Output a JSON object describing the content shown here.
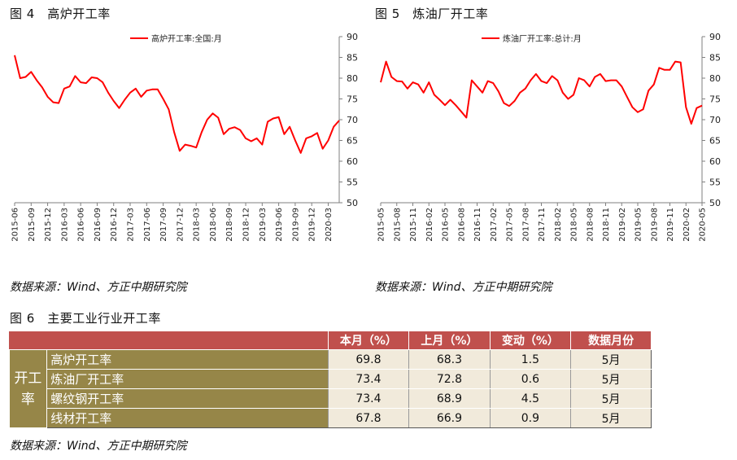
{
  "fig4": {
    "title": "图 4　高炉开工率",
    "source": "数据来源：Wind、方正中期研究院"
  },
  "fig5": {
    "title": "图 5　炼油厂开工率",
    "source": "数据来源：Wind、方正中期研究院"
  },
  "fig6": {
    "title": "图 6　主要工业行业开工率",
    "source": "数据来源：Wind、方正中期研究院",
    "headers": [
      "本月（%）",
      "上月（%）",
      "变动（%）",
      "数据月份"
    ],
    "group_label": "开工率",
    "rows": [
      {
        "name": "高炉开工率",
        "current": "69.8",
        "previous": "68.3",
        "change": "1.5",
        "month": "5月"
      },
      {
        "name": "炼油厂开工率",
        "current": "73.4",
        "previous": "72.8",
        "change": "0.6",
        "month": "5月"
      },
      {
        "name": "螺纹钢开工率",
        "current": "73.4",
        "previous": "68.9",
        "change": "4.5",
        "month": "5月"
      },
      {
        "name": "线材开工率",
        "current": "67.8",
        "previous": "66.9",
        "change": "0.9",
        "month": "5月"
      }
    ]
  },
  "chart_data": [
    {
      "type": "line",
      "series_name": "高炉开工率:全国:月",
      "color": "#ff0000",
      "ylim": [
        50,
        90
      ],
      "yticks": [
        50,
        55,
        60,
        65,
        70,
        75,
        80,
        85,
        90
      ],
      "start": "2015-06",
      "xticks": [
        "2015-06",
        "2015-09",
        "2015-12",
        "2016-03",
        "2016-06",
        "2016-09",
        "2016-12",
        "2017-03",
        "2017-06",
        "2017-09",
        "2017-12",
        "2018-03",
        "2018-06",
        "2018-09",
        "2018-12",
        "2019-03",
        "2019-06",
        "2019-09",
        "2019-12",
        "2020-03"
      ],
      "values": [
        85.5,
        80.0,
        80.3,
        81.5,
        79.5,
        77.8,
        75.5,
        74.2,
        74.0,
        77.5,
        78.0,
        80.5,
        79.0,
        78.8,
        80.2,
        80.0,
        79.0,
        76.5,
        74.5,
        72.8,
        74.8,
        76.5,
        77.5,
        75.5,
        77.0,
        77.3,
        77.3,
        75.0,
        72.5,
        67.0,
        62.5,
        64.0,
        63.7,
        63.3,
        67.0,
        70.0,
        71.5,
        70.5,
        66.5,
        67.8,
        68.2,
        67.5,
        65.5,
        64.8,
        65.5,
        64.0,
        69.5,
        70.3,
        70.6,
        66.5,
        68.3,
        65.0,
        62.0,
        65.5,
        66.0,
        66.8,
        63.0,
        65.0,
        68.3,
        69.8
      ]
    },
    {
      "type": "line",
      "series_name": "炼油厂开工率:总计:月",
      "color": "#ff0000",
      "ylim": [
        50,
        90
      ],
      "yticks": [
        50,
        55,
        60,
        65,
        70,
        75,
        80,
        85,
        90
      ],
      "start": "2015-05",
      "xticks": [
        "2015-05",
        "2015-08",
        "2015-11",
        "2016-02",
        "2016-05",
        "2016-08",
        "2016-11",
        "2017-02",
        "2017-05",
        "2017-08",
        "2017-11",
        "2018-02",
        "2018-05",
        "2018-08",
        "2018-11",
        "2019-02",
        "2019-05",
        "2019-08",
        "2019-11",
        "2020-02",
        "2020-05"
      ],
      "values": [
        79.0,
        84.0,
        80.3,
        79.3,
        79.2,
        77.5,
        79.0,
        78.5,
        76.5,
        79.0,
        76.0,
        74.8,
        73.5,
        74.8,
        73.5,
        72.0,
        70.5,
        79.5,
        78.0,
        76.5,
        79.3,
        78.8,
        76.8,
        74.0,
        73.3,
        74.5,
        76.5,
        77.5,
        79.5,
        81.0,
        79.3,
        78.8,
        80.5,
        79.5,
        76.5,
        75.0,
        76.0,
        80.0,
        79.5,
        78.0,
        80.3,
        81.0,
        79.3,
        79.5,
        79.5,
        78.0,
        75.5,
        73.0,
        71.8,
        72.5,
        77.0,
        78.5,
        82.5,
        82.0,
        82.0,
        84.0,
        83.8,
        73.0,
        69.0,
        72.8,
        73.4
      ]
    }
  ]
}
